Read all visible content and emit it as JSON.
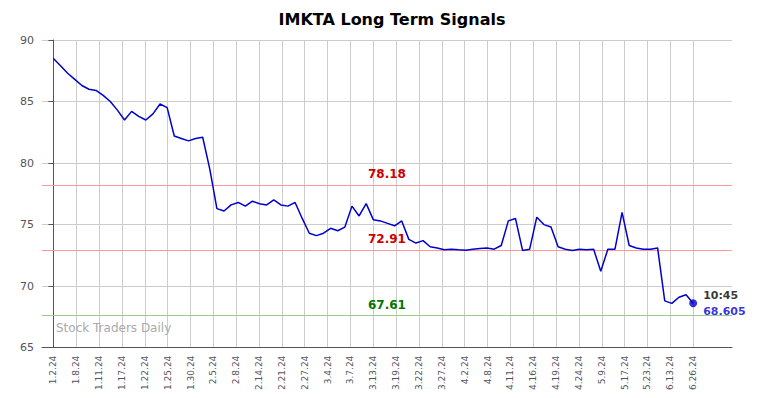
{
  "chart_data": {
    "type": "line",
    "title": "IMKTA Long Term Signals",
    "color": "#0000cc",
    "x": [
      0,
      0.311111,
      0.622222,
      0.933333,
      1.244444,
      1.555556,
      1.866667,
      2.177778,
      2.488889,
      2.8,
      3.111111,
      3.422222,
      3.733333,
      4.044444,
      4.355556,
      4.666667,
      4.977778,
      5.288889,
      5.6,
      5.911111,
      6.222222,
      6.533333,
      6.844444,
      7.155556,
      7.466667,
      7.777778,
      8.088889,
      8.4,
      8.711111,
      9.022222,
      9.333333,
      9.644444,
      9.955556,
      10.266667,
      10.577778,
      10.888889,
      11.2,
      11.511111,
      11.822222,
      12.133333,
      12.444444,
      12.755556,
      13.066667,
      13.377778,
      13.688889,
      14,
      14.311111,
      14.622222,
      14.933333,
      15.244444,
      15.555556,
      15.866667,
      16.177778,
      16.488889,
      16.8,
      17.111111,
      17.422222,
      17.733333,
      18.044444,
      18.355556,
      18.666667,
      18.977778,
      19.288889,
      19.6,
      19.911111,
      20.222222,
      20.533333,
      20.844444,
      21.155556,
      21.466667,
      21.777778,
      22.088889,
      22.4,
      22.711111,
      23.022222,
      23.333333,
      23.644444,
      23.955556,
      24.266667,
      24.577778,
      24.888889,
      25.2,
      25.511111,
      25.822222,
      26.133333,
      26.444444,
      26.755556,
      27.066667,
      27.377778,
      27.688889,
      28
    ],
    "values": [
      88.5,
      87.9,
      87.3,
      86.8,
      86.3,
      86.0,
      85.9,
      85.5,
      85.0,
      84.3,
      83.5,
      84.2,
      83.8,
      83.5,
      84.0,
      84.8,
      84.5,
      82.2,
      82.0,
      81.8,
      82.0,
      82.1,
      79.5,
      76.3,
      76.1,
      76.6,
      76.8,
      76.5,
      76.9,
      76.7,
      76.6,
      77.0,
      76.6,
      76.5,
      76.8,
      75.5,
      74.3,
      74.1,
      74.3,
      74.7,
      74.5,
      74.8,
      76.5,
      75.7,
      76.7,
      75.4,
      75.3,
      75.1,
      74.9,
      75.3,
      73.8,
      73.5,
      73.7,
      73.2,
      73.1,
      72.95,
      73.0,
      72.95,
      72.91,
      73.0,
      73.05,
      73.1,
      73.0,
      73.3,
      75.3,
      75.5,
      72.9,
      73.0,
      75.6,
      75.0,
      74.8,
      73.2,
      73.0,
      72.9,
      73.0,
      72.95,
      73.0,
      71.2,
      73.0,
      73.0,
      76.0,
      73.3,
      73.1,
      73.0,
      73.0,
      73.1,
      68.8,
      68.6,
      69.1,
      69.3,
      68.605
    ],
    "xlim": [
      -0.5,
      29.7
    ],
    "xticks": [
      {
        "value": 0,
        "label": "1.2.24"
      },
      {
        "value": 1,
        "label": "1.8.24"
      },
      {
        "value": 2,
        "label": "1.11.24"
      },
      {
        "value": 3,
        "label": "1.17.24"
      },
      {
        "value": 4,
        "label": "1.22.24"
      },
      {
        "value": 5,
        "label": "1.25.24"
      },
      {
        "value": 6,
        "label": "1.30.24"
      },
      {
        "value": 7,
        "label": "2.5.24"
      },
      {
        "value": 8,
        "label": "2.8.24"
      },
      {
        "value": 9,
        "label": "2.14.24"
      },
      {
        "value": 10,
        "label": "2.21.24"
      },
      {
        "value": 11,
        "label": "2.27.24"
      },
      {
        "value": 12,
        "label": "3.4.24"
      },
      {
        "value": 13,
        "label": "3.7.24"
      },
      {
        "value": 14,
        "label": "3.13.24"
      },
      {
        "value": 15,
        "label": "3.19.24"
      },
      {
        "value": 16,
        "label": "3.22.24"
      },
      {
        "value": 17,
        "label": "3.27.24"
      },
      {
        "value": 18,
        "label": "4.2.24"
      },
      {
        "value": 19,
        "label": "4.8.24"
      },
      {
        "value": 20,
        "label": "4.11.24"
      },
      {
        "value": 21,
        "label": "4.16.24"
      },
      {
        "value": 22,
        "label": "4.19.24"
      },
      {
        "value": 23,
        "label": "4.24.24"
      },
      {
        "value": 24,
        "label": "5.9.24"
      },
      {
        "value": 25,
        "label": "5.17.24"
      },
      {
        "value": 26,
        "label": "5.23.24"
      },
      {
        "value": 27,
        "label": "6.13.24"
      },
      {
        "value": 28,
        "label": "6.26.24"
      }
    ],
    "ylim": [
      65,
      90
    ],
    "yticks": [
      65,
      70,
      75,
      80,
      85,
      90
    ],
    "grid": true,
    "hlines": [
      {
        "y": 78.18,
        "color": "#ff9999",
        "label": "78.18",
        "label_color": "#cc0000"
      },
      {
        "y": 72.91,
        "color": "#ff9999",
        "label": "72.91",
        "label_color": "#cc0000"
      },
      {
        "y": 67.61,
        "color": "#99cc88",
        "label": "67.61",
        "label_color": "#007700"
      }
    ],
    "annotations": [
      {
        "text": "10:45",
        "color": "#000000"
      },
      {
        "text": "68.605",
        "color": "#0000cc"
      }
    ],
    "watermark": {
      "text": "Stock Traders Daily",
      "color": "#aaaaaa"
    }
  }
}
